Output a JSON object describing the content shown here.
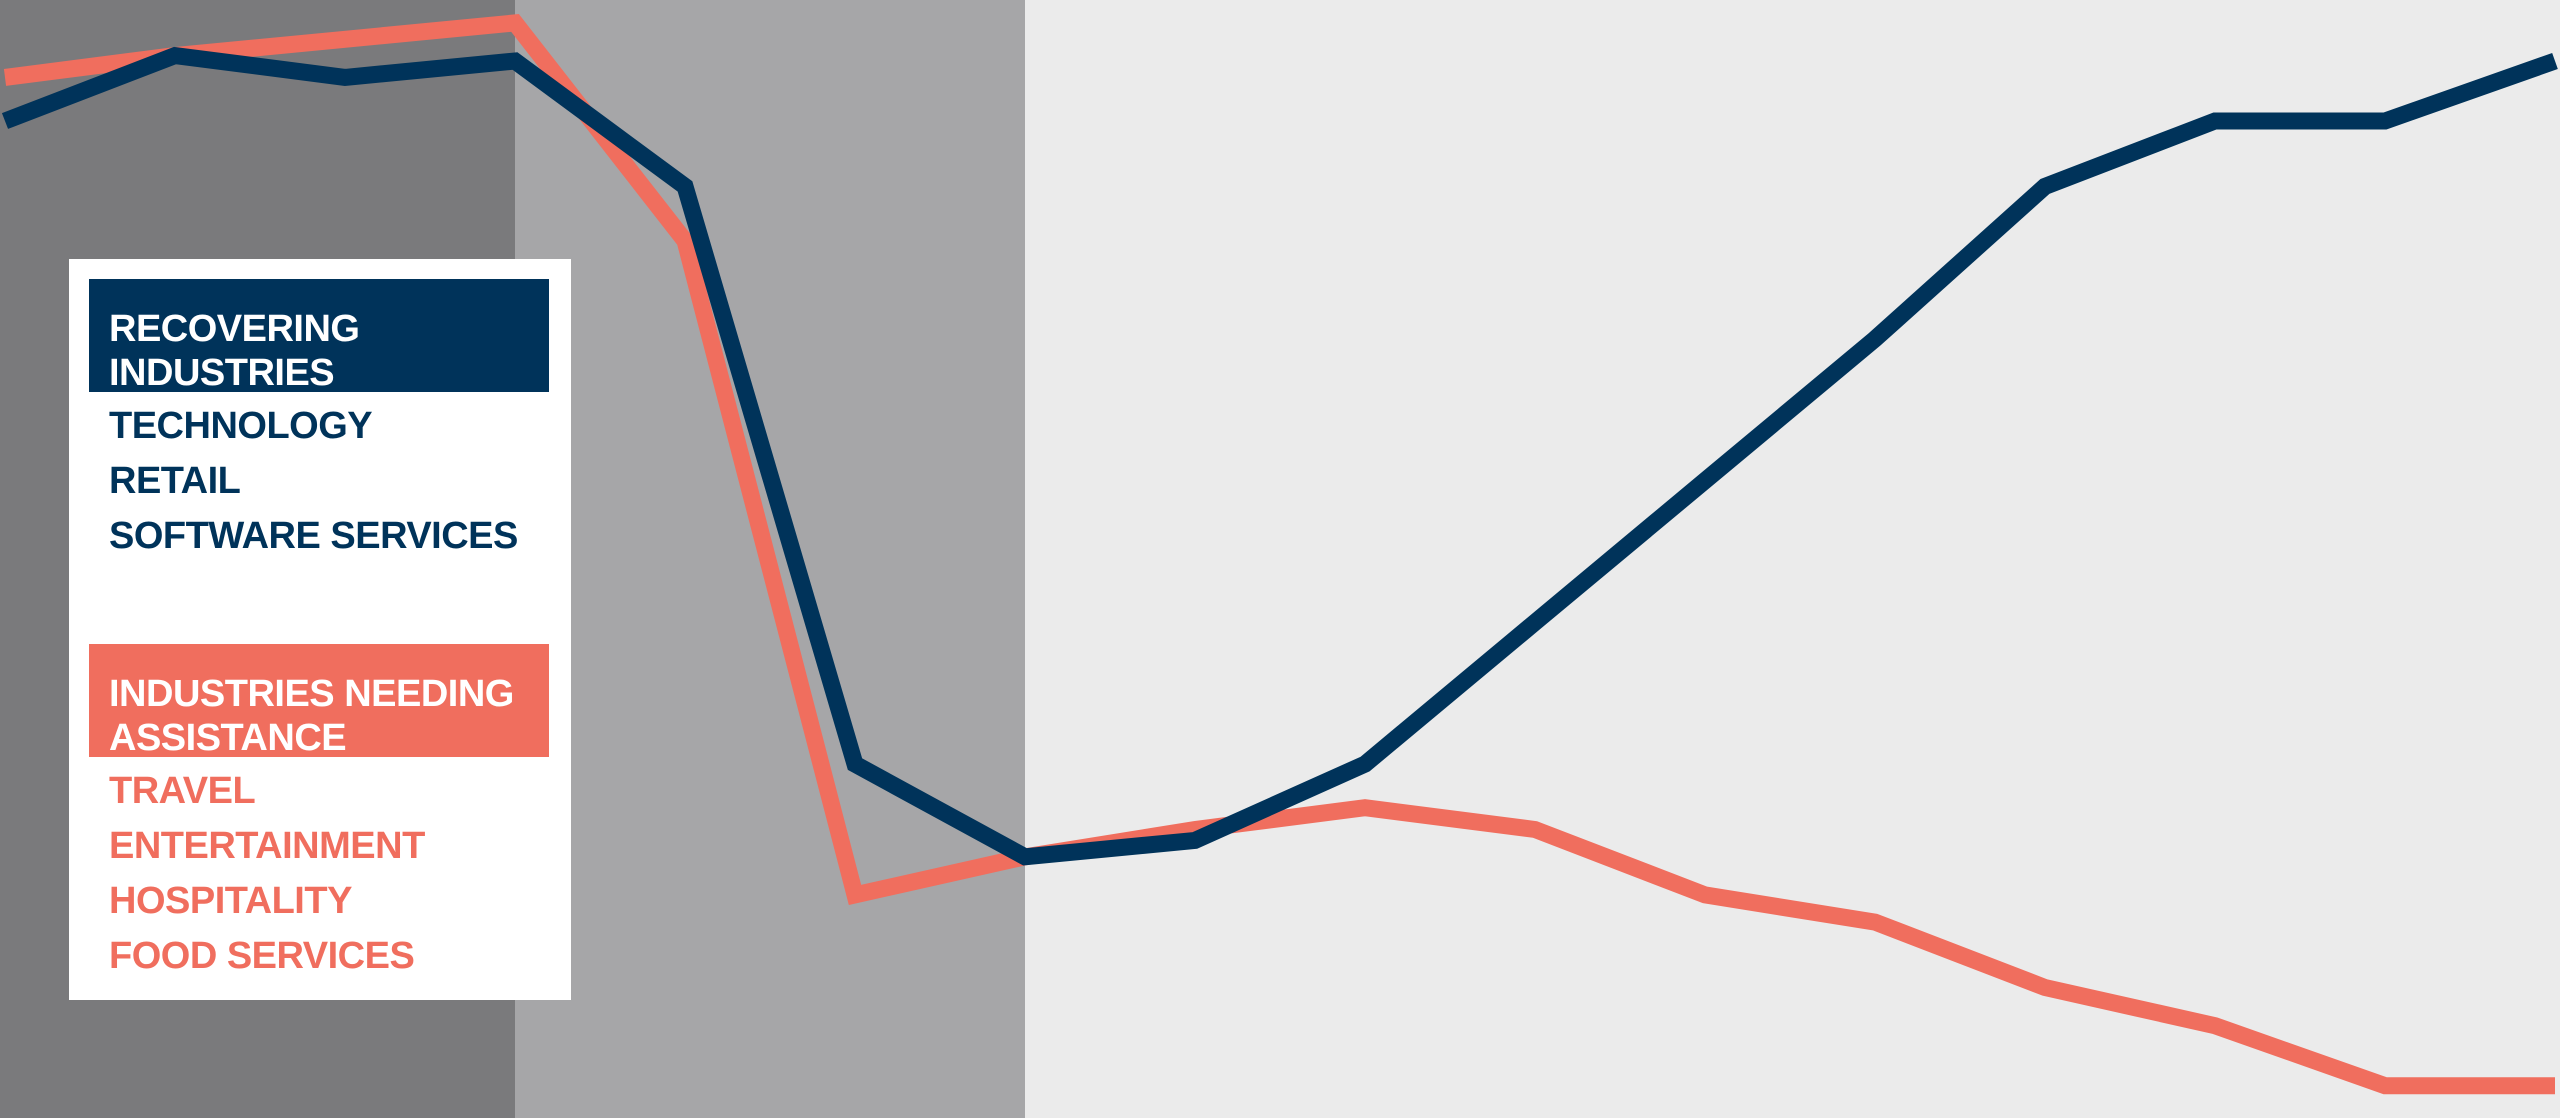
{
  "chart_data": {
    "type": "line",
    "title": "",
    "xlabel": "",
    "ylabel": "",
    "x": [
      1,
      2,
      3,
      4,
      5,
      6,
      7,
      8,
      9,
      10,
      11,
      12,
      13,
      14,
      15,
      16
    ],
    "ylim": [
      0,
      100
    ],
    "grid": false,
    "shaded_periods": [
      {
        "from": 1,
        "to": 4,
        "color": "#7a7a7c"
      },
      {
        "from": 4,
        "to": 7,
        "color": "#a6a6a8"
      }
    ],
    "series": [
      {
        "color": "#f06e5e",
        "values": [
          94,
          96,
          97.5,
          99,
          79,
          19,
          22.5,
          25,
          27,
          25,
          19,
          16.5,
          10.5,
          7,
          1.5,
          1.5
        ]
      },
      {
        "color": "#00335a",
        "values": [
          90,
          96,
          94,
          95.5,
          84,
          31,
          22.5,
          24,
          31,
          44,
          57,
          70,
          84,
          90,
          90,
          95.5
        ]
      }
    ],
    "legend_position": "left",
    "legend": {
      "recovering": {
        "header": "RECOVERING INDUSTRIES",
        "items": [
          "TECHNOLOGY",
          "RETAIL",
          "SOFTWARE SERVICES"
        ]
      },
      "assistance": {
        "header": "INDUSTRIES NEEDING ASSISTANCE",
        "items": [
          "TRAVEL",
          "ENTERTAINMENT",
          "HOSPITALITY",
          "FOOD SERVICES"
        ]
      }
    }
  },
  "colors": {
    "background": "#ebebeb",
    "navy": "#00335a",
    "coral": "#f06e5e",
    "shade_dark": "#7a7a7c",
    "shade_light": "#a6a6a8"
  }
}
